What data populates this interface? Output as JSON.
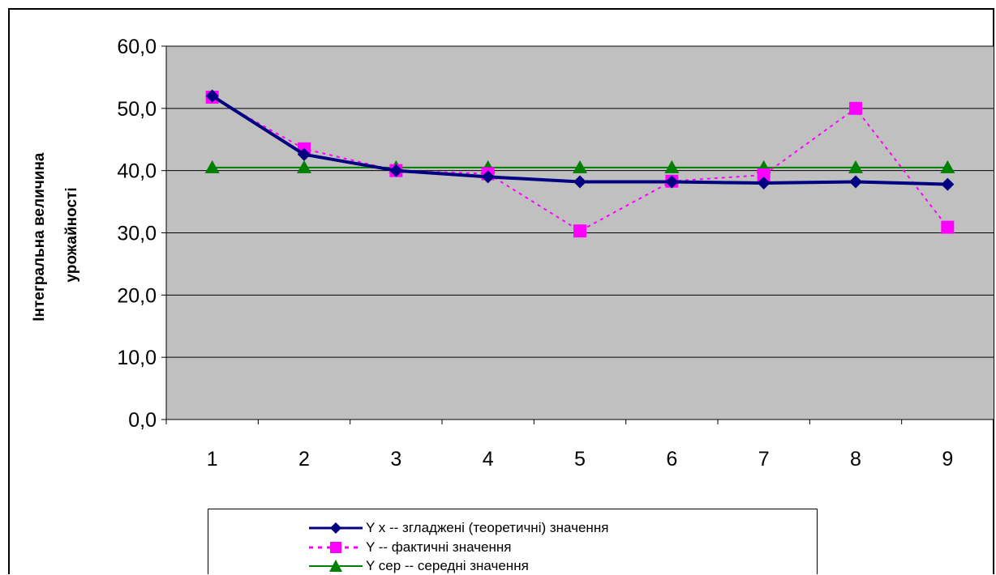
{
  "chart_data": {
    "type": "line",
    "title": "",
    "xlabel": "",
    "ylabel": "Інтегральна величина урожайності",
    "ylabel_lines": [
      "Інтегральна величина",
      "урожайності"
    ],
    "categories": [
      "1",
      "2",
      "3",
      "4",
      "5",
      "6",
      "7",
      "8",
      "9"
    ],
    "ylim": [
      0,
      60
    ],
    "yticks": [
      "0,0",
      "10,0",
      "20,0",
      "30,0",
      "40,0",
      "50,0",
      "60,0"
    ],
    "grid": true,
    "legend_position": "bottom",
    "series": [
      {
        "name": "Y x -- згладжені (теоретичні) значення",
        "values": [
          52.0,
          42.6,
          40.0,
          39.0,
          38.2,
          38.2,
          38.0,
          38.2,
          37.8
        ],
        "color": "#000080",
        "marker": "diamond",
        "dash": "solid"
      },
      {
        "name": "Y -- фактичні значення",
        "values": [
          51.8,
          43.5,
          40.0,
          39.5,
          30.3,
          38.3,
          39.3,
          50.0,
          30.9
        ],
        "color": "#ff00ff",
        "marker": "square",
        "dash": "dotted"
      },
      {
        "name": "Y сер -- середні значення",
        "values": [
          40.5,
          40.5,
          40.5,
          40.5,
          40.5,
          40.5,
          40.5,
          40.5,
          40.5
        ],
        "color": "#008000",
        "marker": "triangle",
        "dash": "solid"
      }
    ]
  }
}
